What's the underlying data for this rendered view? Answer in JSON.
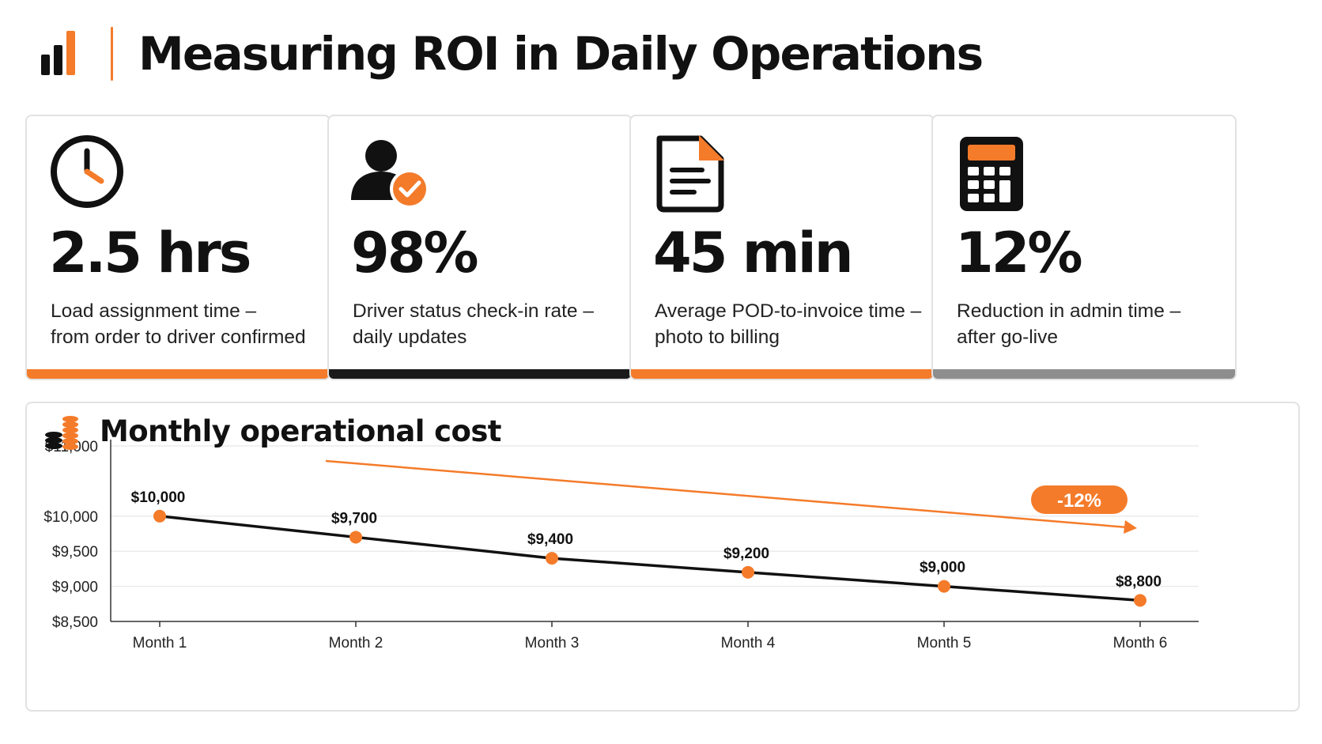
{
  "header": {
    "title": "Measuring ROI in Daily Operations",
    "logo_icon": "bar-chart-icon"
  },
  "cards": [
    {
      "icon": "clock-icon",
      "metric": "2.5 hrs",
      "desc_line1": "Load assignment time –",
      "desc_line2": "from order to driver confirmed",
      "accent": "#F47B2A"
    },
    {
      "icon": "user-check-icon",
      "metric": "98%",
      "desc_line1": "Driver status check-in rate –",
      "desc_line2": "daily updates",
      "accent": "#1A1A1A"
    },
    {
      "icon": "document-icon",
      "metric": "45 min",
      "desc_line1": "Average POD-to-invoice time –",
      "desc_line2": "photo to billing",
      "accent": "#F47B2A"
    },
    {
      "icon": "calculator-icon",
      "metric": "12%",
      "desc_line1": "Reduction in admin time –",
      "desc_line2": "after go-live",
      "accent": "#8E8E8E"
    }
  ],
  "chart_panel": {
    "title": "Monthly operational cost",
    "icon": "coins-icon"
  },
  "chart_data": {
    "type": "line",
    "title": "Monthly operational cost",
    "categories": [
      "Month 1",
      "Month 2",
      "Month 3",
      "Month 4",
      "Month 5",
      "Month 6"
    ],
    "series": [
      {
        "values": [
          10000,
          9700,
          9400,
          9200,
          9000,
          8800
        ],
        "color": "#111111",
        "marker_color": "#F47B2A"
      }
    ],
    "data_labels": [
      "$10,000",
      "$9,700",
      "$9,400",
      "$9,200",
      "$9,000",
      "$8,800"
    ],
    "yticks": [
      11000,
      10000,
      9500,
      9000,
      8500
    ],
    "ytick_labels": [
      "$11,000",
      "$10,000",
      "$9,500",
      "$9,000",
      "$8,500"
    ],
    "ylim": [
      8500,
      11000
    ],
    "grid": true,
    "trend_annotation": {
      "label": "-12%",
      "color": "#F47B2A"
    }
  },
  "colors": {
    "accent": "#F47B2A",
    "dark": "#111111",
    "gray": "#8E8E8E",
    "border": "#E2E2E2"
  }
}
